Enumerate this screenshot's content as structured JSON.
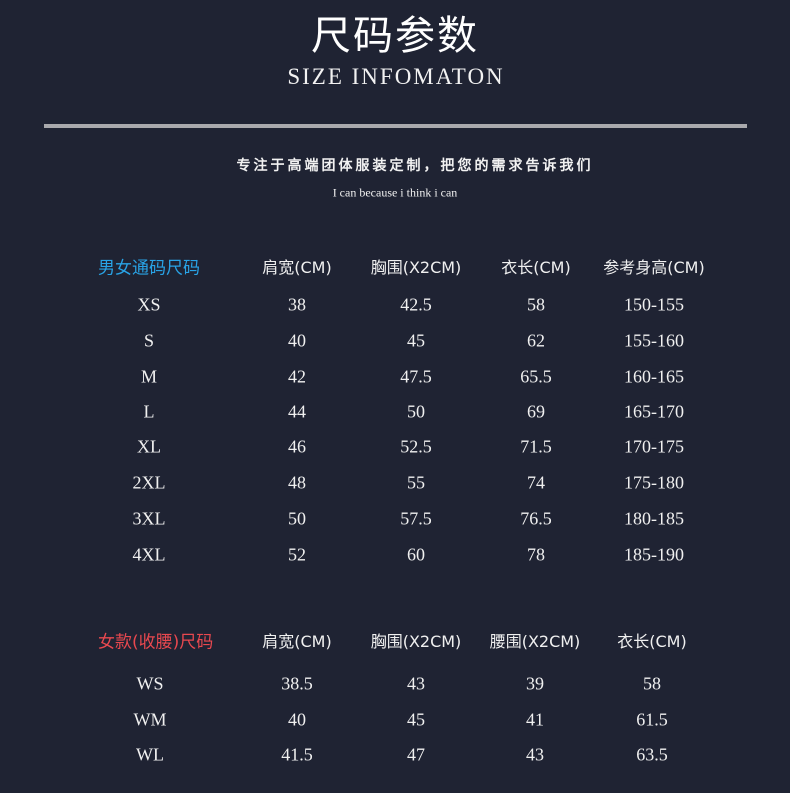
{
  "header": {
    "title": "尺码参数",
    "subtitle": "SIZE INFOMATON",
    "slogan": "专注于高端团体服装定制，把您的需求告诉我们",
    "motto": "I can because i think i can"
  },
  "colors": {
    "background": "#1f2333",
    "unisex_label": "#29a3e6",
    "women_label": "#e8484f"
  },
  "unisex_table": {
    "label": "男女通码尺码",
    "columns": [
      "肩宽(CM)",
      "胸围(X2CM)",
      "衣长(CM)",
      "参考身高(CM)"
    ],
    "rows": [
      [
        "XS",
        "38",
        "42.5",
        "58",
        "150-155"
      ],
      [
        "S",
        "40",
        "45",
        "62",
        "155-160"
      ],
      [
        "M",
        "42",
        "47.5",
        "65.5",
        "160-165"
      ],
      [
        "L",
        "44",
        "50",
        "69",
        "165-170"
      ],
      [
        "XL",
        "46",
        "52.5",
        "71.5",
        "170-175"
      ],
      [
        "2XL",
        "48",
        "55",
        "74",
        "175-180"
      ],
      [
        "3XL",
        "50",
        "57.5",
        "76.5",
        "180-185"
      ],
      [
        "4XL",
        "52",
        "60",
        "78",
        "185-190"
      ]
    ]
  },
  "women_table": {
    "label": "女款(收腰)尺码",
    "columns": [
      "肩宽(CM)",
      "胸围(X2CM)",
      "腰围(X2CM)",
      "衣长(CM)"
    ],
    "rows": [
      [
        "WS",
        "38.5",
        "43",
        "39",
        "58"
      ],
      [
        "WM",
        "40",
        "45",
        "41",
        "61.5"
      ],
      [
        "WL",
        "41.5",
        "47",
        "43",
        "63.5"
      ]
    ]
  }
}
